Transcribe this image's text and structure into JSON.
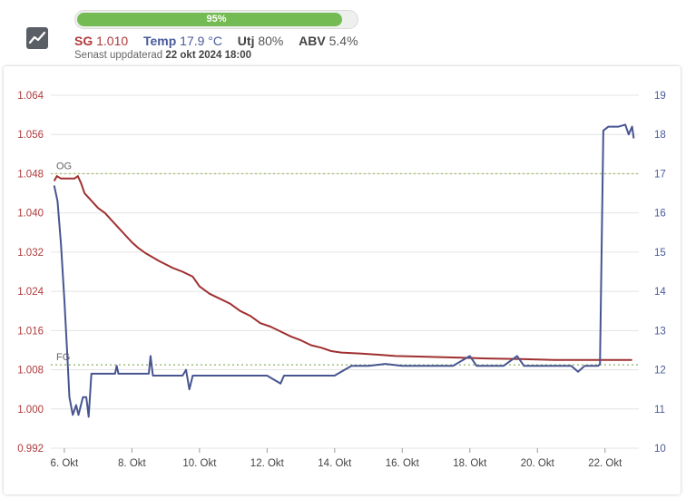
{
  "header": {
    "icon": "line-chart-icon",
    "progress": {
      "label": "95%",
      "value": 95,
      "color": "#74bb53"
    },
    "stats": [
      {
        "key": "sg",
        "label": "SG",
        "value": "1.010",
        "label_color": "#b03a3a",
        "value_color": "#b03a3a"
      },
      {
        "key": "temp",
        "label": "Temp",
        "value": "17.9 °C",
        "label_color": "#4a5a9a",
        "value_color": "#4a5a9a"
      },
      {
        "key": "utj",
        "label": "Utj",
        "value": "80%",
        "label_color": "#444444",
        "value_color": "#555555"
      },
      {
        "key": "abv",
        "label": "ABV",
        "value": "5.4%",
        "label_color": "#444444",
        "value_color": "#555555"
      }
    ],
    "updated_prefix": "Senast uppdaterad",
    "updated_value": "22 okt 2024 18:00"
  },
  "chart_data": {
    "type": "line",
    "x_unit": "days",
    "x_ticks": [
      "6. Okt",
      "8. Okt",
      "10. Okt",
      "12. Okt",
      "14. Okt",
      "16. Okt",
      "18. Okt",
      "20. Okt",
      "22. Okt"
    ],
    "x_tick_values": [
      6,
      8,
      10,
      12,
      14,
      16,
      18,
      20,
      22
    ],
    "xlim": [
      5.6,
      23.0
    ],
    "y_left": {
      "ticks": [
        "1.064",
        "1.056",
        "1.048",
        "1.040",
        "1.032",
        "1.024",
        "1.016",
        "1.008",
        "1.000",
        "0.992"
      ],
      "ylim": [
        0.992,
        1.064
      ],
      "color": "#b03a3a"
    },
    "y_right": {
      "ticks": [
        "19",
        "18",
        "17",
        "16",
        "15",
        "14",
        "13",
        "12",
        "11",
        "10"
      ],
      "ylim": [
        10,
        19
      ],
      "color": "#4a5a9a"
    },
    "grid": true,
    "reference_lines": [
      {
        "label": "OG",
        "value": 1.048,
        "axis": "left",
        "color": "#a8c070"
      },
      {
        "label": "FG",
        "value": 1.009,
        "axis": "left",
        "color": "#8ab060"
      }
    ],
    "series": [
      {
        "axis": "left",
        "color": "#a03030",
        "points": [
          [
            5.7,
            1.0465
          ],
          [
            5.78,
            1.0475
          ],
          [
            5.9,
            1.047
          ],
          [
            6.05,
            1.047
          ],
          [
            6.3,
            1.047
          ],
          [
            6.4,
            1.0475
          ],
          [
            6.5,
            1.046
          ],
          [
            6.6,
            1.044
          ],
          [
            6.8,
            1.0425
          ],
          [
            7.0,
            1.041
          ],
          [
            7.2,
            1.04
          ],
          [
            7.4,
            1.0385
          ],
          [
            7.6,
            1.037
          ],
          [
            7.8,
            1.0355
          ],
          [
            8.0,
            1.034
          ],
          [
            8.2,
            1.0328
          ],
          [
            8.4,
            1.0318
          ],
          [
            8.6,
            1.031
          ],
          [
            8.8,
            1.0302
          ],
          [
            9.0,
            1.0295
          ],
          [
            9.2,
            1.0288
          ],
          [
            9.5,
            1.028
          ],
          [
            9.8,
            1.027
          ],
          [
            10.0,
            1.025
          ],
          [
            10.3,
            1.0235
          ],
          [
            10.6,
            1.0225
          ],
          [
            10.9,
            1.0215
          ],
          [
            11.2,
            1.02
          ],
          [
            11.5,
            1.019
          ],
          [
            11.8,
            1.0175
          ],
          [
            12.1,
            1.0168
          ],
          [
            12.4,
            1.0158
          ],
          [
            12.7,
            1.0148
          ],
          [
            13.0,
            1.014
          ],
          [
            13.3,
            1.013
          ],
          [
            13.6,
            1.0125
          ],
          [
            13.9,
            1.0118
          ],
          [
            14.2,
            1.0115
          ],
          [
            14.8,
            1.0113
          ],
          [
            15.4,
            1.011
          ],
          [
            15.8,
            1.0108
          ],
          [
            16.5,
            1.0107
          ],
          [
            17.5,
            1.0105
          ],
          [
            18.5,
            1.0103
          ],
          [
            19.5,
            1.0102
          ],
          [
            20.5,
            1.01
          ],
          [
            21.5,
            1.01
          ],
          [
            22.5,
            1.01
          ],
          [
            22.8,
            1.01
          ]
        ]
      },
      {
        "axis": "right",
        "color": "#475590",
        "points": [
          [
            5.7,
            16.7
          ],
          [
            5.8,
            16.3
          ],
          [
            5.9,
            15.2
          ],
          [
            6.0,
            13.8
          ],
          [
            6.08,
            12.5
          ],
          [
            6.15,
            11.3
          ],
          [
            6.25,
            10.85
          ],
          [
            6.35,
            11.1
          ],
          [
            6.42,
            10.85
          ],
          [
            6.55,
            11.3
          ],
          [
            6.65,
            11.3
          ],
          [
            6.72,
            10.8
          ],
          [
            6.8,
            11.9
          ],
          [
            6.9,
            11.9
          ],
          [
            7.5,
            11.9
          ],
          [
            7.55,
            12.1
          ],
          [
            7.6,
            11.9
          ],
          [
            8.5,
            11.9
          ],
          [
            8.55,
            12.35
          ],
          [
            8.62,
            11.85
          ],
          [
            9.5,
            11.85
          ],
          [
            9.6,
            12.0
          ],
          [
            9.7,
            11.5
          ],
          [
            9.8,
            11.85
          ],
          [
            11.0,
            11.85
          ],
          [
            12.0,
            11.85
          ],
          [
            12.4,
            11.65
          ],
          [
            12.5,
            11.85
          ],
          [
            14.0,
            11.85
          ],
          [
            14.5,
            12.1
          ],
          [
            15.0,
            12.1
          ],
          [
            15.5,
            12.15
          ],
          [
            16.0,
            12.1
          ],
          [
            16.8,
            12.1
          ],
          [
            17.5,
            12.1
          ],
          [
            18.0,
            12.35
          ],
          [
            18.2,
            12.1
          ],
          [
            19.0,
            12.1
          ],
          [
            19.4,
            12.35
          ],
          [
            19.6,
            12.1
          ],
          [
            20.5,
            12.1
          ],
          [
            21.0,
            12.1
          ],
          [
            21.2,
            11.95
          ],
          [
            21.4,
            12.1
          ],
          [
            21.8,
            12.1
          ],
          [
            21.85,
            12.15
          ],
          [
            21.95,
            18.1
          ],
          [
            22.1,
            18.2
          ],
          [
            22.4,
            18.2
          ],
          [
            22.6,
            18.25
          ],
          [
            22.7,
            18.0
          ],
          [
            22.8,
            18.2
          ],
          [
            22.85,
            17.9
          ]
        ]
      }
    ]
  }
}
